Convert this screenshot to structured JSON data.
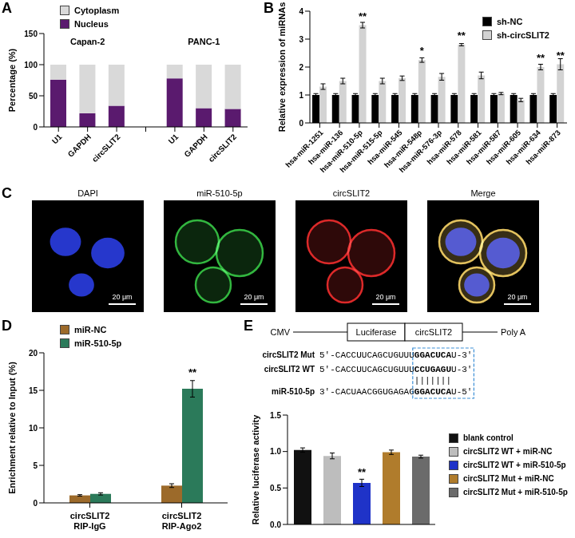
{
  "panel_labels": [
    "A",
    "B",
    "C",
    "D",
    "E"
  ],
  "chart_data": [
    {
      "type": "bar",
      "stacked": true,
      "ylabel": "Percentage (%)",
      "categories": [
        "U1",
        "GAPDH",
        "circSLIT2",
        null,
        "U1",
        "GAPDH",
        "circSLIT2"
      ],
      "annotations": [
        "Capan-2",
        "PANC-1"
      ],
      "series": [
        {
          "name": "Cytoplasm",
          "color": "#d9d9d9",
          "values": [
            24,
            78,
            66,
            null,
            22,
            70,
            71
          ]
        },
        {
          "name": "Nucleus",
          "color": "#5a1a6e",
          "values": [
            76,
            22,
            34,
            null,
            78,
            30,
            29
          ]
        }
      ],
      "ylim": [
        0,
        150
      ],
      "yticks": [
        0,
        50,
        100,
        150
      ],
      "legend": "top-left"
    },
    {
      "type": "bar",
      "ylabel": "Relative expression of miRNAs",
      "categories": [
        "hsa-miR-1251",
        "hsa-miR-136",
        "hsa-miR-510-5p",
        "hsa-miR-515-5p",
        "hsa-miR-545",
        "hsa-miR-548p",
        "hsa-miR-576-3p",
        "hsa-miR-578",
        "hsa-miR-581",
        "hsa-miR-587",
        "hsa-miR-605",
        "hsa-miR-634",
        "hsa-miR-873"
      ],
      "series": [
        {
          "name": "sh-NC",
          "color": "#000000",
          "values": [
            1,
            1,
            1,
            1,
            1,
            1,
            1,
            1,
            1,
            1,
            1,
            1,
            1
          ],
          "errors": [
            0.05,
            0.05,
            0.05,
            0.05,
            0.05,
            0.05,
            0.05,
            0.05,
            0.05,
            0.05,
            0.05,
            0.05,
            0.05
          ]
        },
        {
          "name": "sh-circSLIT2",
          "color": "#d3d3d3",
          "values": [
            1.3,
            1.5,
            3.5,
            1.5,
            1.6,
            2.25,
            1.65,
            2.8,
            1.7,
            1.05,
            0.82,
            2.0,
            2.1
          ],
          "errors": [
            0.1,
            0.1,
            0.1,
            0.1,
            0.08,
            0.08,
            0.12,
            0.04,
            0.12,
            0.04,
            0.06,
            0.1,
            0.2
          ],
          "significance": [
            null,
            null,
            "**",
            null,
            null,
            "*",
            null,
            "**",
            null,
            null,
            null,
            "**",
            "**"
          ]
        }
      ],
      "ylim": [
        0,
        4
      ],
      "yticks": [
        0,
        1,
        2,
        3,
        4
      ],
      "legend": "top-right"
    },
    {
      "type": "bar",
      "ylabel": "Enrichment relative to Input (%)",
      "categories": [
        "circSLIT2\nRIP-IgG",
        "circSLIT2\nRIP-Ago2"
      ],
      "series": [
        {
          "name": "miR-NC",
          "color": "#9c6a2a",
          "values": [
            1.0,
            2.3
          ],
          "errors": [
            0.1,
            0.25
          ]
        },
        {
          "name": "miR-510-5p",
          "color": "#2b7a5a",
          "values": [
            1.2,
            15.2
          ],
          "errors": [
            0.15,
            1.1
          ],
          "significance": [
            null,
            "**"
          ]
        }
      ],
      "ylim": [
        0,
        20
      ],
      "yticks": [
        0,
        5,
        10,
        15,
        20
      ],
      "legend": "top-left"
    },
    {
      "type": "bar",
      "ylabel": "Relative luciferase activity",
      "categories": [
        "blank control",
        "circSLIT2 WT + miR-NC",
        "circSLIT2 WT + miR-510-5p",
        "circSLIT2 Mut + miR-NC",
        "circSLIT2 Mut + miR-510-5p"
      ],
      "values": [
        1.02,
        0.94,
        0.57,
        0.99,
        0.93
      ],
      "errors": [
        0.03,
        0.04,
        0.05,
        0.03,
        0.02
      ],
      "significance": [
        null,
        null,
        "**",
        null,
        null
      ],
      "colors": [
        "#111111",
        "#bdbdbd",
        "#1f33c8",
        "#b07c2c",
        "#6b6b6b"
      ],
      "ylim": [
        0,
        1.5
      ],
      "yticks": [
        {
          "value": 0,
          "label": "0.0"
        },
        {
          "value": 0.5,
          "label": "0.5"
        },
        {
          "value": 1,
          "label": "1.0"
        },
        {
          "value": 1.5,
          "label": "1.5"
        }
      ],
      "tick_labels": "y",
      "legend": "right"
    }
  ],
  "image_panel": {
    "channels": [
      {
        "title": "DAPI",
        "color": "#2f45ff"
      },
      {
        "title": "miR-510-5p",
        "color": "#3bd44a"
      },
      {
        "title": "circSLIT2",
        "color": "#ff3030"
      }
    ],
    "merge_title": "Merge",
    "scale_bar": "20 μm"
  },
  "construct": {
    "elements": [
      "CMV",
      "Luciferase",
      "circSLIT2",
      "Poly A"
    ],
    "sequences": [
      {
        "name": "circSLIT2 Mut",
        "prefix": "5'-CACCUUCAGCUGUUU",
        "seed": "GGACUCA",
        "suffix": "U-3'"
      },
      {
        "name": "circSLIT2 WT",
        "prefix": "5'-CACCUUCAGCUGUUU",
        "seed": "CCUGAGU",
        "suffix": "U-3'"
      },
      {
        "name": "miR-510-5p",
        "prefix": "3'-CACUAACGGUGAGAG",
        "seed": "GGACUCA",
        "suffix": "U-5'"
      }
    ],
    "pairing": "|||||||"
  }
}
